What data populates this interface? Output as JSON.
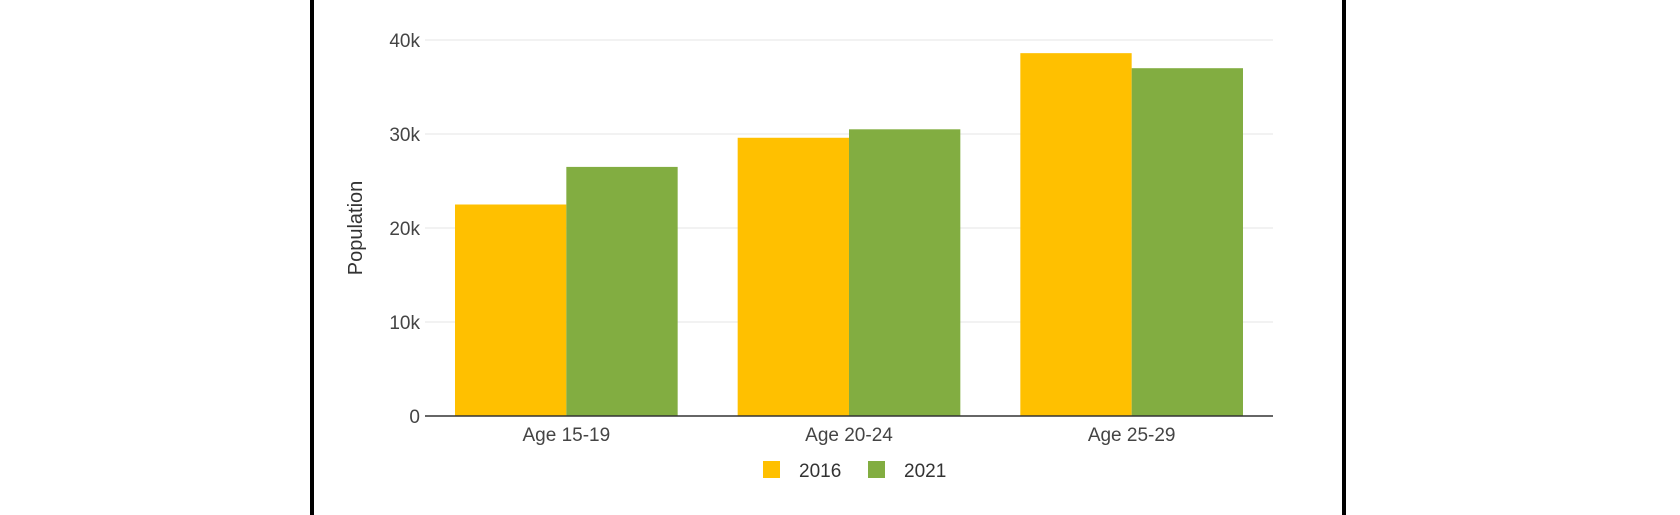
{
  "chart_data": {
    "type": "bar",
    "categories": [
      "Age 15-19",
      "Age 20-24",
      "Age 25-29"
    ],
    "series": [
      {
        "name": "2016",
        "values": [
          22500,
          29600,
          38600
        ],
        "color": "#FFC000"
      },
      {
        "name": "2021",
        "values": [
          26500,
          30500,
          37000
        ],
        "color": "#82AD41"
      }
    ],
    "ylabel": "Population",
    "xlabel": "",
    "ylim": [
      0,
      40000
    ],
    "yticks": [
      0,
      10000,
      20000,
      30000,
      40000
    ],
    "ytick_labels": [
      "0",
      "10k",
      "20k",
      "30k",
      "40k"
    ],
    "grid": true,
    "legend": "bottom-center",
    "gridline_color": "#E6E6E6",
    "axis_color": "#333333"
  }
}
